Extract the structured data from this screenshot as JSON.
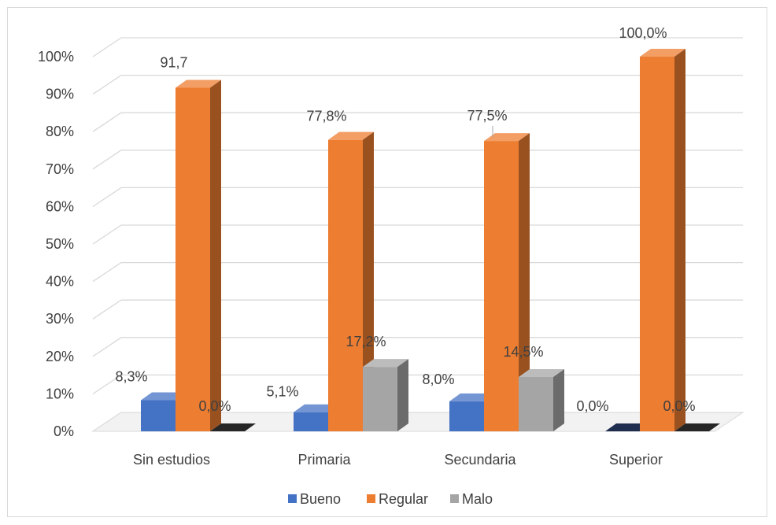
{
  "chart_data": {
    "type": "bar",
    "three_d": true,
    "categories": [
      "Sin estudios",
      "Primaria",
      "Secundaria",
      "Superior"
    ],
    "series": [
      {
        "name": "Bueno",
        "color": "#4472c4",
        "values": [
          8.3,
          5.1,
          8.0,
          0.0
        ],
        "labels": [
          "8,3%",
          "5,1%",
          "8,0%",
          "0,0%"
        ]
      },
      {
        "name": "Regular",
        "color": "#ed7d31",
        "values": [
          91.7,
          77.8,
          77.5,
          100.0
        ],
        "labels": [
          "91,7",
          "77,8%",
          "77,5%",
          "100,0%"
        ]
      },
      {
        "name": "Malo",
        "color": "#a5a5a5",
        "values": [
          0.0,
          17.2,
          14.5,
          0.0
        ],
        "labels": [
          "0,0%",
          "17,2%",
          "14,5%",
          "0,0%"
        ]
      }
    ],
    "y_ticks": [
      "0%",
      "10%",
      "20%",
      "30%",
      "40%",
      "50%",
      "60%",
      "70%",
      "80%",
      "90%",
      "100%"
    ],
    "ylim": [
      0,
      100
    ],
    "grid": true,
    "legend": "bottom"
  }
}
